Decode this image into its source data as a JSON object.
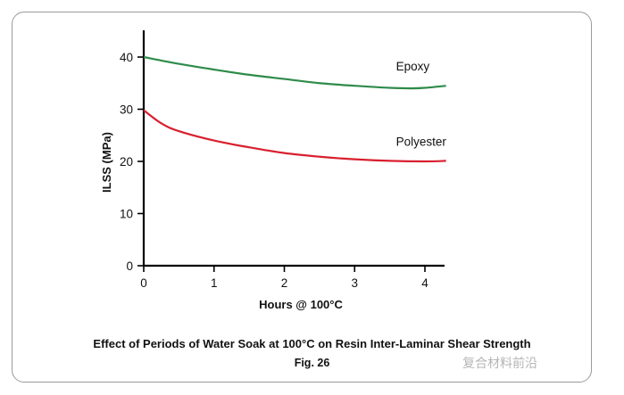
{
  "chart_data": {
    "type": "line",
    "title": "Effect of Periods of Water Soak at 100°C on Resin Inter-Laminar Shear Strength",
    "subtitle": "Fig. 26",
    "xlabel": "Hours @ 100°C",
    "ylabel": "ILSS (MPa)",
    "xlim": [
      0,
      4.3
    ],
    "ylim": [
      0,
      45
    ],
    "x_ticks": [
      "0",
      "1",
      "2",
      "3",
      "4"
    ],
    "y_ticks": [
      "0",
      "10",
      "20",
      "30",
      "40"
    ],
    "grid": false,
    "legend": "inline labels at right end of lines",
    "series": [
      {
        "name": "Epoxy",
        "color": "#2e8b4a",
        "x": [
          0,
          0.5,
          1,
          1.5,
          2,
          2.5,
          3,
          3.5,
          3.8,
          4.0,
          4.3
        ],
        "y": [
          40.0,
          38.7,
          37.6,
          36.6,
          35.8,
          35.0,
          34.5,
          34.1,
          34.0,
          34.1,
          34.5
        ]
      },
      {
        "name": "Polyester",
        "color": "#d8202f",
        "x": [
          0,
          0.25,
          0.5,
          1,
          1.5,
          2,
          2.5,
          3,
          3.5,
          4.0,
          4.3
        ],
        "y": [
          29.8,
          27.3,
          25.8,
          24.0,
          22.7,
          21.6,
          20.9,
          20.4,
          20.1,
          20.0,
          20.1
        ]
      }
    ]
  },
  "watermark": "复合材料前沿"
}
